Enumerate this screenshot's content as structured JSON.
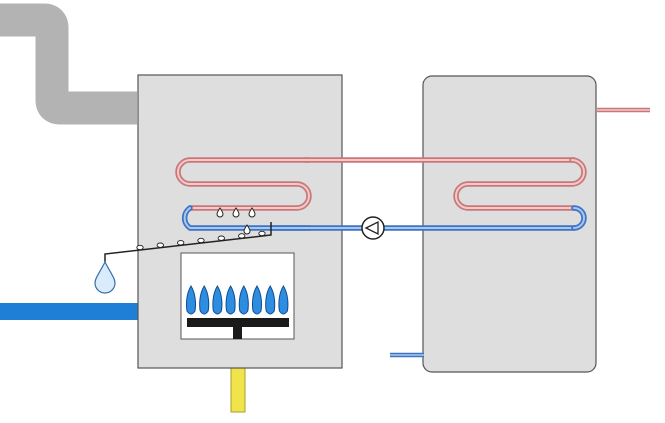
{
  "diagram": {
    "colors": {
      "background": "#ffffff",
      "flue": "#b3b3b3",
      "unit_fill": "#dedede",
      "unit_stroke": "#555555",
      "hot_coil": "#c87878",
      "hot_coil_inner": "#f2c8c8",
      "cold_coil": "#3e73c6",
      "cold_coil_inner": "#a9c9ec",
      "cold_water_pipe": "#1f7fd6",
      "gas_pipe": "#f0e44a",
      "gas_pipe_stroke": "#a9a12a",
      "burner_bar": "#1a1a1a",
      "flame_fill": "#2f8de0",
      "flame_stroke": "#0e4f98",
      "condensate_drop": "#d8ecfb",
      "condensate_stroke": "#3a6ea8",
      "line": "#222222"
    },
    "components": [
      "flue-pipe",
      "condensing-boiler",
      "storage-cylinder",
      "primary-flow-coil",
      "primary-return-coil",
      "circulation-pump",
      "gas-burner",
      "gas-supply-pipe",
      "cold-water-inlet-pipe",
      "condensate-drip-tray",
      "hot-water-outlet-pipe",
      "cold-feed-pipe"
    ],
    "flame_count": 8,
    "condensate_beads": 7
  }
}
